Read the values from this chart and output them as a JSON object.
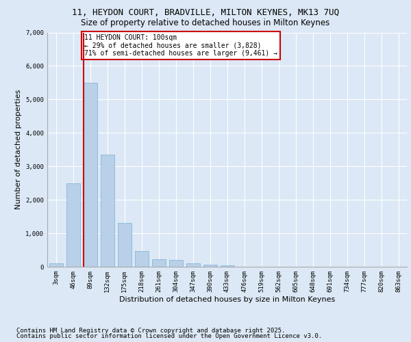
{
  "title_line1": "11, HEYDON COURT, BRADVILLE, MILTON KEYNES, MK13 7UQ",
  "title_line2": "Size of property relative to detached houses in Milton Keynes",
  "xlabel": "Distribution of detached houses by size in Milton Keynes",
  "ylabel": "Number of detached properties",
  "categories": [
    "3sqm",
    "46sqm",
    "89sqm",
    "132sqm",
    "175sqm",
    "218sqm",
    "261sqm",
    "304sqm",
    "347sqm",
    "390sqm",
    "433sqm",
    "476sqm",
    "519sqm",
    "562sqm",
    "605sqm",
    "648sqm",
    "691sqm",
    "734sqm",
    "777sqm",
    "820sqm",
    "863sqm"
  ],
  "values": [
    100,
    2500,
    5500,
    3350,
    1300,
    480,
    220,
    200,
    100,
    60,
    40,
    0,
    0,
    0,
    0,
    0,
    0,
    0,
    0,
    0,
    0
  ],
  "bar_color": "#b8d0e8",
  "bar_edge_color": "#7aafd4",
  "vline_color": "#cc0000",
  "vline_x_index": 2,
  "annotation_title": "11 HEYDON COURT: 100sqm",
  "annotation_line2": "← 29% of detached houses are smaller (3,828)",
  "annotation_line3": "71% of semi-detached houses are larger (9,461) →",
  "ylim": [
    0,
    7000
  ],
  "yticks": [
    0,
    1000,
    2000,
    3000,
    4000,
    5000,
    6000,
    7000
  ],
  "footer_line1": "Contains HM Land Registry data © Crown copyright and database right 2025.",
  "footer_line2": "Contains public sector information licensed under the Open Government Licence v3.0.",
  "bg_color": "#dce8f5",
  "title_fontsize": 9,
  "subtitle_fontsize": 8.5,
  "axis_label_fontsize": 8,
  "tick_fontsize": 6.5,
  "annot_fontsize": 7,
  "footer_fontsize": 6.5
}
